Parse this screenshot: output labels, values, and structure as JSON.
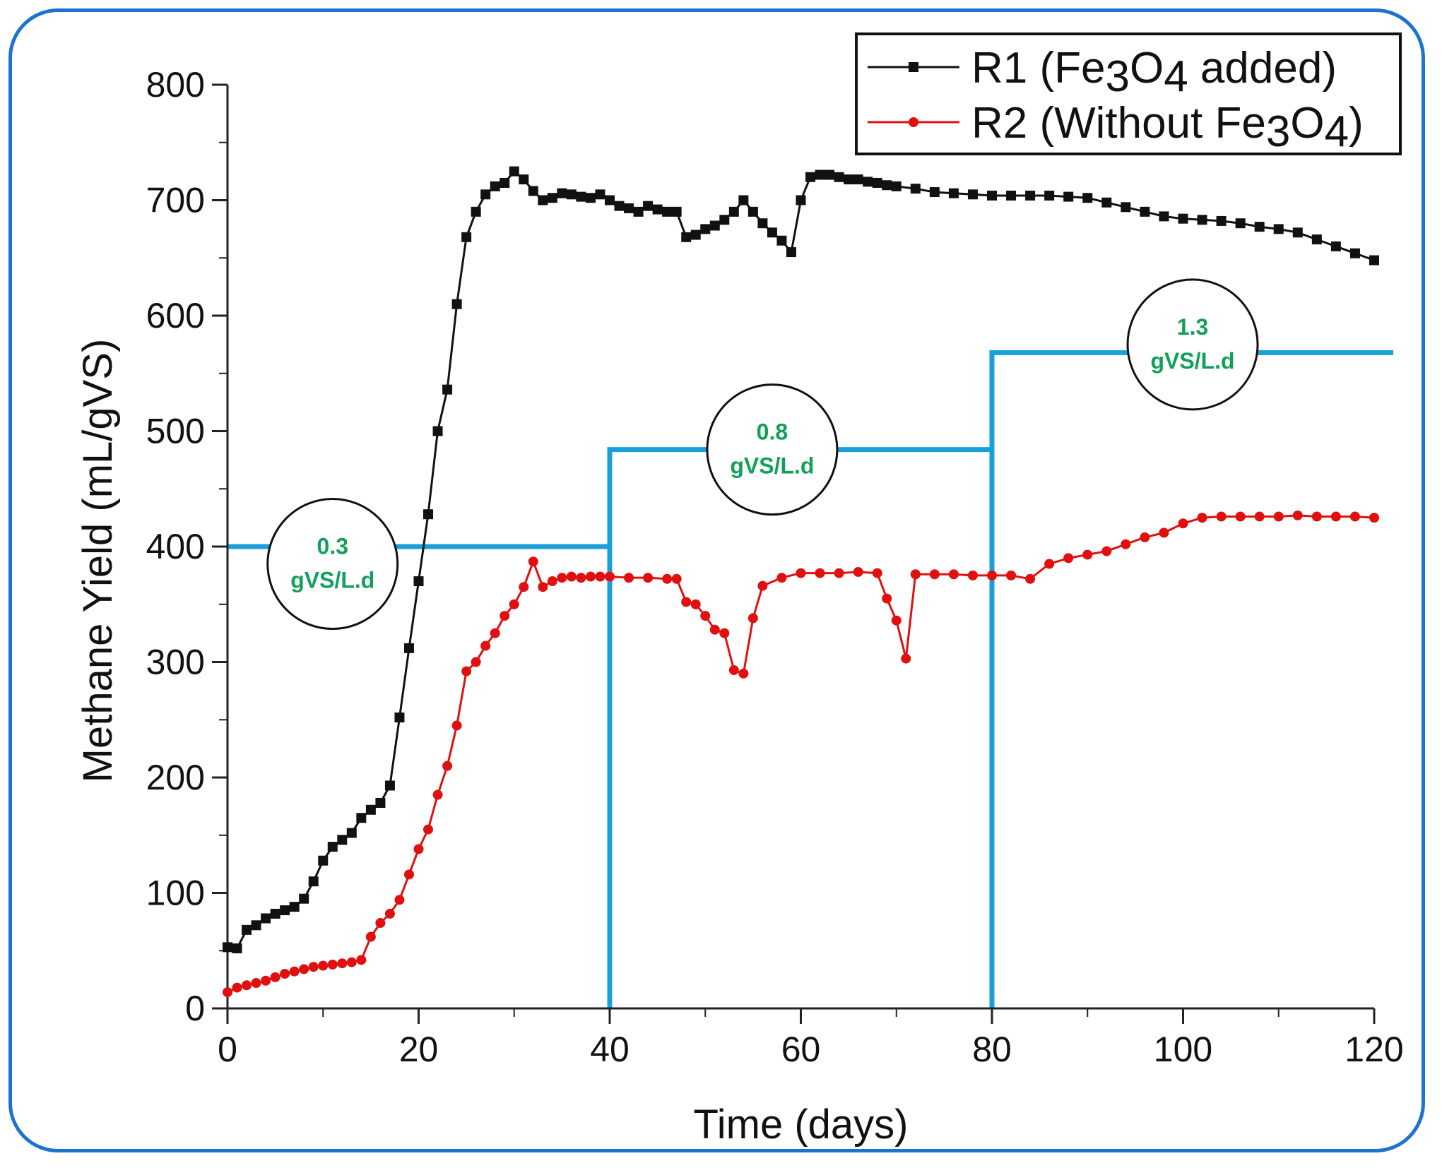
{
  "chart_data": {
    "type": "line",
    "title": "",
    "xlabel": "Time (days)",
    "ylabel": "Methane Yield (mL/gVS)",
    "xlim": [
      0,
      120
    ],
    "ylim": [
      0,
      800
    ],
    "xticks": [
      0,
      20,
      40,
      60,
      80,
      100,
      120
    ],
    "yticks": [
      0,
      100,
      200,
      300,
      400,
      500,
      600,
      700,
      800
    ],
    "legend_position": "top-right",
    "series": [
      {
        "name": "R1 (Fe3O4 added)",
        "legend_parts": [
          "R1 (Fe",
          "3",
          "O",
          "4",
          " added)"
        ],
        "color": "#111111",
        "marker": "square",
        "x": [
          0,
          1,
          2,
          3,
          4,
          5,
          6,
          7,
          8,
          9,
          10,
          11,
          12,
          13,
          14,
          15,
          16,
          17,
          18,
          19,
          20,
          21,
          22,
          23,
          24,
          25,
          26,
          27,
          28,
          29,
          30,
          31,
          32,
          33,
          34,
          35,
          36,
          37,
          38,
          39,
          40,
          41,
          42,
          43,
          44,
          45,
          46,
          47,
          48,
          49,
          50,
          51,
          52,
          53,
          54,
          55,
          56,
          57,
          58,
          59,
          60,
          61,
          62,
          63,
          64,
          65,
          66,
          67,
          68,
          69,
          70,
          72,
          74,
          76,
          78,
          80,
          82,
          84,
          86,
          88,
          90,
          92,
          94,
          96,
          98,
          100,
          102,
          104,
          106,
          108,
          110,
          112,
          114,
          116,
          118,
          120
        ],
        "values": [
          53,
          52,
          68,
          72,
          78,
          82,
          85,
          88,
          95,
          110,
          128,
          140,
          146,
          152,
          165,
          172,
          178,
          193,
          252,
          312,
          370,
          428,
          500,
          536,
          610,
          668,
          690,
          705,
          712,
          715,
          725,
          718,
          708,
          700,
          702,
          706,
          705,
          703,
          702,
          705,
          700,
          695,
          693,
          690,
          695,
          692,
          690,
          690,
          668,
          670,
          675,
          678,
          683,
          690,
          700,
          690,
          680,
          672,
          665,
          655,
          700,
          720,
          722,
          722,
          720,
          718,
          718,
          716,
          715,
          713,
          712,
          710,
          707,
          706,
          705,
          704,
          704,
          704,
          704,
          703,
          702,
          698,
          694,
          690,
          686,
          684,
          683,
          682,
          680,
          677,
          675,
          672,
          666,
          660,
          654,
          648
        ]
      },
      {
        "name": "R2 (Without Fe3O4)",
        "legend_parts": [
          "R2 (Without Fe",
          "3",
          "O",
          "4",
          ")"
        ],
        "color": "#e01010",
        "marker": "circle",
        "x": [
          0,
          1,
          2,
          3,
          4,
          5,
          6,
          7,
          8,
          9,
          10,
          11,
          12,
          13,
          14,
          15,
          16,
          17,
          18,
          19,
          20,
          21,
          22,
          23,
          24,
          25,
          26,
          27,
          28,
          29,
          30,
          31,
          32,
          33,
          34,
          35,
          36,
          37,
          38,
          39,
          40,
          42,
          44,
          46,
          47,
          48,
          49,
          50,
          51,
          52,
          53,
          54,
          55,
          56,
          58,
          60,
          62,
          64,
          66,
          68,
          69,
          70,
          71,
          72,
          74,
          76,
          78,
          80,
          82,
          84,
          86,
          88,
          90,
          92,
          94,
          96,
          98,
          100,
          102,
          104,
          106,
          108,
          110,
          112,
          114,
          116,
          118,
          120
        ],
        "values": [
          14,
          18,
          20,
          22,
          24,
          27,
          30,
          32,
          34,
          36,
          37,
          38,
          39,
          40,
          42,
          62,
          74,
          82,
          94,
          116,
          138,
          155,
          185,
          210,
          245,
          292,
          300,
          314,
          325,
          340,
          350,
          365,
          387,
          365,
          370,
          373,
          374,
          373,
          374,
          374,
          374,
          373,
          373,
          372,
          372,
          352,
          350,
          340,
          328,
          325,
          293,
          290,
          338,
          366,
          373,
          377,
          377,
          377,
          378,
          377,
          355,
          336,
          303,
          376,
          376,
          376,
          375,
          375,
          375,
          372,
          385,
          390,
          393,
          396,
          402,
          408,
          412,
          420,
          425,
          426,
          426,
          426,
          426,
          427,
          426,
          426,
          426,
          425
        ]
      }
    ],
    "loading_rate_steps": {
      "color": "#1aa0d8",
      "segments": [
        {
          "x_start": 0,
          "x_end": 40,
          "y": 400,
          "label": [
            "0.3",
            "gVS/L.d"
          ],
          "label_center": [
            11,
            385
          ]
        },
        {
          "x_start": 40,
          "x_end": 80,
          "y": 484,
          "label": [
            "0.8",
            "gVS/L.d"
          ],
          "label_center": [
            57,
            484
          ]
        },
        {
          "x_start": 80,
          "x_end": 122,
          "y": 568,
          "label": [
            "1.3",
            "gVS/L.d"
          ],
          "label_center": [
            101,
            575
          ]
        }
      ]
    }
  }
}
